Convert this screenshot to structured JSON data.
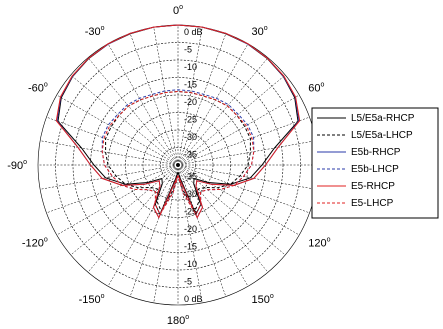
{
  "chart_data": {
    "type": "polar-line",
    "title": "",
    "radial_axis": {
      "unit": "dB",
      "ticks_upper": [
        "0",
        "-5",
        "-10",
        "-15",
        "-20",
        "-25",
        "-30",
        "-35"
      ],
      "ticks_lower": [
        "-35",
        "-30",
        "-25",
        "-20",
        "-15",
        "-10",
        "-5",
        "0"
      ],
      "unit_suffix": " dB",
      "range": [
        -40,
        0
      ]
    },
    "angular_axis": {
      "labels": [
        {
          "deg": 0,
          "text": "0"
        },
        {
          "deg": 30,
          "text": "30"
        },
        {
          "deg": 60,
          "text": "60"
        },
        {
          "deg": 120,
          "text": "120"
        },
        {
          "deg": 150,
          "text": "150"
        },
        {
          "deg": 180,
          "text": "180"
        },
        {
          "deg": -150,
          "text": "-150"
        },
        {
          "deg": -120,
          "text": "-120"
        },
        {
          "deg": -90,
          "text": "-90"
        },
        {
          "deg": -60,
          "text": "-60"
        },
        {
          "deg": -30,
          "text": "-30"
        }
      ],
      "degree_symbol": "o",
      "grid_step_deg": 10
    },
    "grid": true,
    "legend_position": "right",
    "angles_deg": [
      -180,
      -170,
      -160,
      -150,
      -140,
      -130,
      -120,
      -110,
      -100,
      -90,
      -80,
      -70,
      -60,
      -50,
      -40,
      -30,
      -20,
      -10,
      0,
      10,
      20,
      30,
      40,
      50,
      60,
      70,
      80,
      90,
      100,
      110,
      120,
      130,
      140,
      150,
      160,
      170,
      180
    ],
    "series": [
      {
        "name": "L5/E5a-RHCP",
        "color": "#000000",
        "dash": "solid",
        "values": [
          -38,
          -36,
          -25,
          -27,
          -33,
          -34,
          -30,
          -24,
          -19,
          -16,
          -12,
          -3.5,
          -1.5,
          -0.7,
          -0.3,
          -0.1,
          -0.1,
          0,
          0,
          0,
          -0.1,
          -0.1,
          -0.3,
          -0.7,
          -1.5,
          -3.5,
          -12,
          -16,
          -19,
          -24,
          -30,
          -34,
          -33,
          -27,
          -25,
          -36,
          -38
        ]
      },
      {
        "name": "L5/E5a-LHCP",
        "color": "#000000",
        "dash": "dashed",
        "values": [
          -38,
          -33,
          -26,
          -28,
          -31,
          -30,
          -27,
          -24,
          -22,
          -20,
          -19,
          -18,
          -18,
          -18,
          -18,
          -18.5,
          -19,
          -19,
          -19,
          -19,
          -19,
          -18.5,
          -18,
          -18,
          -18,
          -18,
          -19,
          -20,
          -22,
          -24,
          -27,
          -30,
          -31,
          -28,
          -26,
          -33,
          -38
        ]
      },
      {
        "name": "E5b-RHCP",
        "color": "#2a3aa8",
        "dash": "solid",
        "values": [
          -37,
          -35,
          -24,
          -26,
          -32,
          -33,
          -29,
          -23,
          -18,
          -15,
          -11,
          -3.2,
          -1.3,
          -0.6,
          -0.2,
          -0.1,
          0,
          0,
          0,
          0,
          0,
          -0.1,
          -0.2,
          -0.6,
          -1.3,
          -3.2,
          -11,
          -15,
          -18,
          -23,
          -29,
          -33,
          -32,
          -26,
          -24,
          -35,
          -37
        ]
      },
      {
        "name": "E5b-LHCP",
        "color": "#2a3aa8",
        "dash": "dashed",
        "values": [
          -37,
          -32,
          -25,
          -27,
          -30,
          -29,
          -26,
          -23,
          -21,
          -19,
          -18,
          -17,
          -17,
          -17.5,
          -17.5,
          -18,
          -18.5,
          -18.5,
          -18.5,
          -18.5,
          -18.5,
          -18,
          -17.5,
          -17.5,
          -17,
          -17,
          -18,
          -19,
          -21,
          -23,
          -26,
          -29,
          -30,
          -27,
          -25,
          -32,
          -37
        ]
      },
      {
        "name": "E5-RHCP",
        "color": "#e02020",
        "dash": "solid",
        "values": [
          -37,
          -35,
          -24,
          -26,
          -32,
          -33,
          -29,
          -23,
          -18,
          -15,
          -11,
          -3,
          -1.2,
          -0.5,
          -0.2,
          0,
          0,
          0,
          0,
          0,
          0,
          0,
          -0.2,
          -0.5,
          -1.2,
          -3,
          -11,
          -15,
          -18,
          -23,
          -29,
          -33,
          -32,
          -26,
          -24,
          -35,
          -37
        ]
      },
      {
        "name": "E5-LHCP",
        "color": "#e02020",
        "dash": "dashed",
        "values": [
          -37,
          -32,
          -25,
          -27,
          -30,
          -29,
          -26,
          -23,
          -21,
          -19,
          -18,
          -17.5,
          -17.5,
          -18,
          -18,
          -18.5,
          -19,
          -19,
          -19,
          -19,
          -19,
          -18.5,
          -18,
          -18,
          -17.5,
          -17.5,
          -18,
          -19,
          -21,
          -23,
          -26,
          -29,
          -30,
          -27,
          -25,
          -32,
          -37
        ]
      }
    ]
  }
}
